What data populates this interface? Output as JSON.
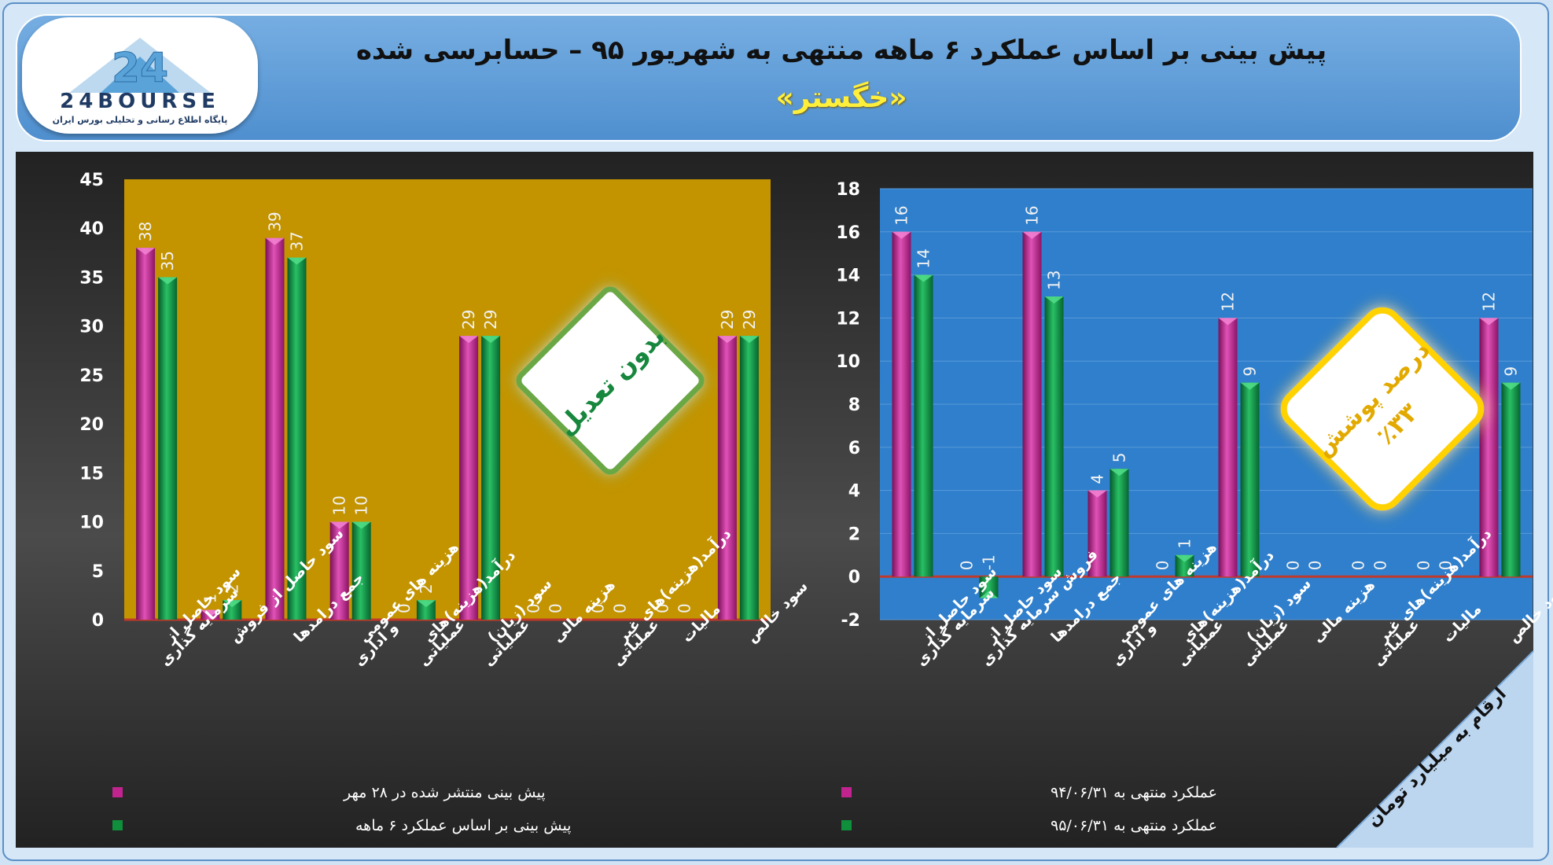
{
  "header": {
    "logo_text": "24BOURSE",
    "logo_subtitle": "پایگاه اطلاع رسانی و تحلیلی بورس ایران",
    "title": "پیش بینی بر اساس عملکرد ۶ ماهه منتهی به شهریور ۹۵ – حسابرسی شده",
    "subtitle": "«خگستر»"
  },
  "badges": {
    "left": "بدون تعدیل",
    "right_line1": "درصد پوشش",
    "right_line2": "٪۳۳",
    "units": "ارقام به میلیارد تومان"
  },
  "colors": {
    "magenta": "#c2248f",
    "green": "#0f8f3c",
    "left_plot_bg": "#c39400",
    "right_plot_bg": "#2f7fcc",
    "accent_yellow": "#ffd200"
  },
  "chart_data": [
    {
      "type": "bar",
      "categories": [
        "سود حاصل از سرمایه گذاری",
        "سود حاصل از فروش",
        "جمع درامدها",
        "هزینه های عمومی و اداری",
        "درآمد(هزینه)های عملیاتی",
        "سود (زیان) عملیاتی",
        "هزینه مالی",
        "درآمد(هزینه)های غیر عملیاتی",
        "مالیات",
        "سود خالص"
      ],
      "series": [
        {
          "name": "پیش بینی منتشر شده در ۲۸ مهر",
          "values": [
            38,
            1,
            39,
            10,
            0,
            29,
            0,
            0,
            0,
            29
          ]
        },
        {
          "name": "پیش بینی بر اساس عملکرد ۶ ماهه",
          "values": [
            35,
            2,
            37,
            10,
            2,
            29,
            0,
            0,
            0,
            29
          ]
        }
      ],
      "ylim": [
        0,
        45
      ],
      "yticks": [
        0,
        5,
        10,
        15,
        20,
        25,
        30,
        35,
        40,
        45
      ],
      "grid": false,
      "legend": "bottom"
    },
    {
      "type": "bar",
      "categories": [
        "سود حاصل از سرمایه گذاری",
        "سود حاصل از فروش سرمایه گذاری",
        "جمع درامدها",
        "هزینه های عمومی و اداری",
        "درآمد(هزینه)های عملیاتی",
        "سود (زیان) عملیاتی",
        "هزینه مالی",
        "درآمد(هزینه)های غیر عملیاتی",
        "مالیات",
        "سود خالص"
      ],
      "series": [
        {
          "name": "عملکرد منتهی به ۹۴/۰۶/۳۱",
          "values": [
            16,
            0,
            16,
            4,
            0,
            12,
            0,
            0,
            0,
            12
          ]
        },
        {
          "name": "عملکرد منتهی به ۹۵/۰۶/۳۱",
          "values": [
            14,
            -1,
            13,
            5,
            1,
            9,
            0,
            0,
            0,
            9
          ]
        }
      ],
      "ylim": [
        -2,
        18
      ],
      "yticks": [
        -2,
        0,
        2,
        4,
        6,
        8,
        10,
        12,
        14,
        16,
        18
      ],
      "grid": true,
      "legend": "bottom"
    }
  ]
}
